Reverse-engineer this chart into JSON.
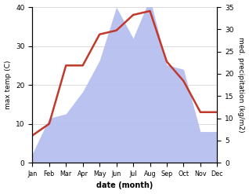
{
  "months": [
    "Jan",
    "Feb",
    "Mar",
    "Apr",
    "May",
    "Jun",
    "Jul",
    "Aug",
    "Sep",
    "Oct",
    "Nov",
    "Dec"
  ],
  "max_temp": [
    7,
    10,
    25,
    25,
    33,
    34,
    38,
    39,
    26,
    21,
    13,
    13
  ],
  "precipitation": [
    2,
    10,
    11,
    16,
    23,
    35,
    28,
    37,
    22,
    21,
    7,
    7
  ],
  "temp_color": "#c0392b",
  "precip_color_fill": "#b3bcee",
  "temp_ylim": [
    0,
    40
  ],
  "precip_ylim": [
    0,
    35
  ],
  "temp_yticks": [
    0,
    10,
    20,
    30,
    40
  ],
  "precip_yticks": [
    0,
    5,
    10,
    15,
    20,
    25,
    30,
    35
  ],
  "xlabel": "date (month)",
  "ylabel_left": "max temp (C)",
  "ylabel_right": "med. precipitation (kg/m2)",
  "bg_color": "#ffffff",
  "grid_color": "#cccccc"
}
